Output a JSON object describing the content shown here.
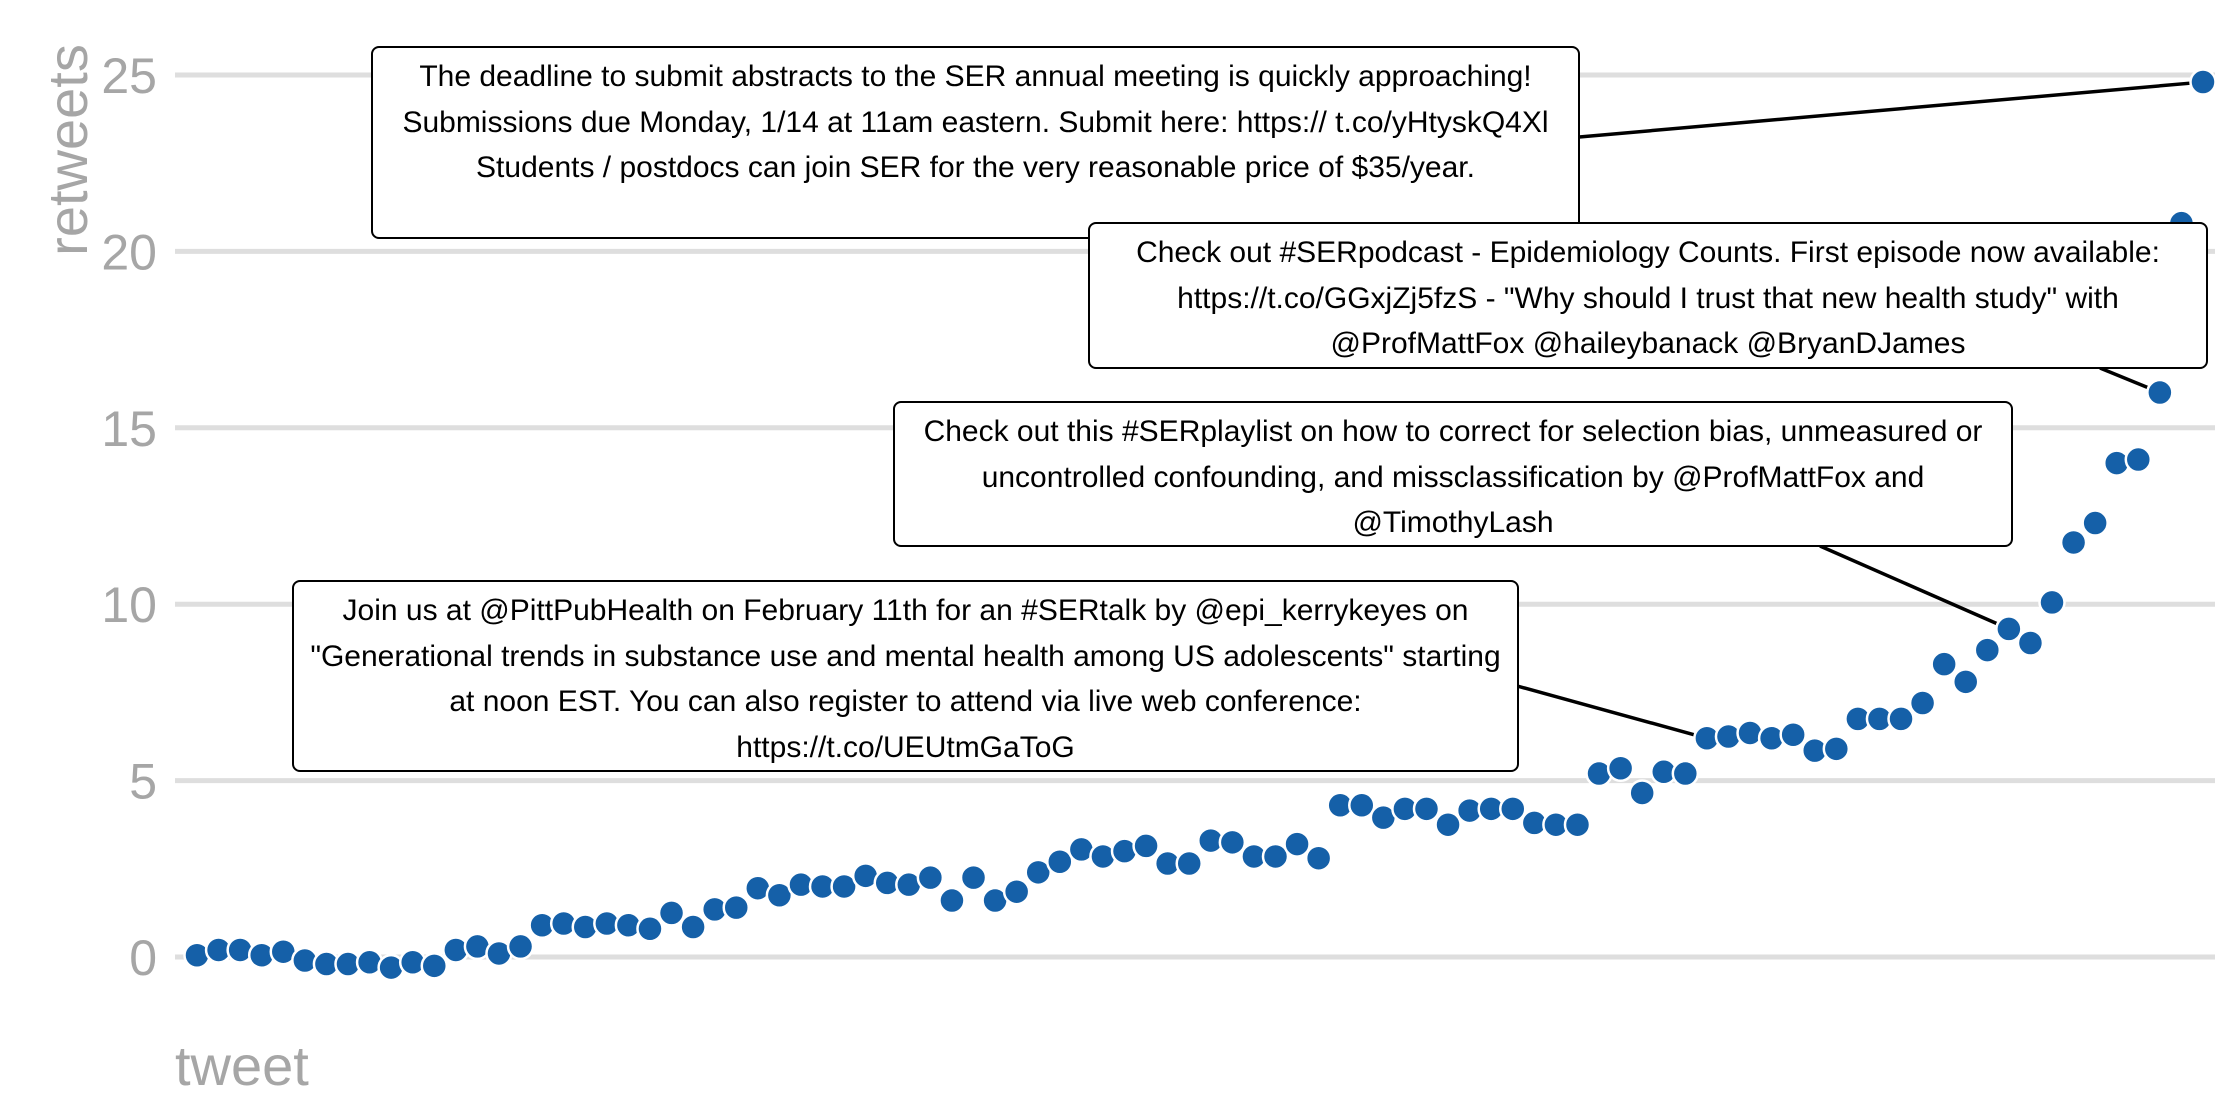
{
  "chart_data": {
    "type": "scatter",
    "xlabel": "tweet",
    "ylabel": "retweets",
    "ylim": [
      -1.5,
      26
    ],
    "yticks": [
      0,
      5,
      10,
      15,
      20,
      25
    ],
    "grid": "horizontal",
    "point_color": "#1560a8",
    "series": [
      {
        "values": [
          0.05,
          0.2,
          0.2,
          0.05,
          0.15,
          -0.1,
          -0.2,
          -0.2,
          -0.15,
          -0.3,
          -0.15,
          -0.25,
          0.2,
          0.3,
          0.1,
          0.3,
          0.9,
          0.95,
          0.85,
          0.95,
          0.9,
          0.8,
          1.25,
          0.85,
          1.35,
          1.4,
          1.95,
          1.75,
          2.05,
          2.0,
          2.0,
          2.3,
          2.1,
          2.05,
          2.25,
          1.6,
          2.25,
          1.6,
          1.85,
          2.4,
          2.7,
          3.05,
          2.85,
          3.0,
          3.15,
          2.65,
          2.65,
          3.3,
          3.25,
          2.85,
          2.85,
          3.2,
          2.8,
          4.3,
          4.3,
          3.95,
          4.2,
          4.2,
          3.75,
          4.15,
          4.2,
          4.2,
          3.8,
          3.75,
          3.75,
          5.2,
          5.35,
          4.65,
          5.25,
          5.2,
          6.2,
          6.25,
          6.35,
          6.2,
          6.3,
          5.85,
          5.9,
          6.75,
          6.75,
          6.75,
          7.2,
          8.3,
          7.8,
          8.7,
          9.3,
          8.9,
          10.05,
          11.75,
          12.3,
          14.0,
          14.1,
          16.0,
          20.8,
          24.8
        ]
      }
    ],
    "annotations": [
      {
        "text": "The deadline to submit abstracts to the SER annual meeting is quickly approaching! Submissions due Monday, 1/14 at 11am eastern. Submit here: https:// t.co/yHtyskQ4Xl Students / postdocs can join SER for the very reasonable price of $35/year.",
        "point_index": 93
      },
      {
        "text": "Check out #SERpodcast - Epidemiology Counts. First episode now available: https://t.co/GGxjZj5fzS - \"Why should I trust that new health study\" with @ProfMattFox @haileybanack @BryanDJames",
        "point_index": 91
      },
      {
        "text": "Check out this #SERplaylist on how to correct for selection bias, unmeasured or uncontrolled confounding, and missclassification by @ProfMattFox and @TimothyLash",
        "point_index": 84
      },
      {
        "text": "Join us at @PittPubHealth on February 11th for an #SERtalk by @epi_kerrykeyes on \"Generational trends in substance use and mental health among US adolescents\" starting at noon EST. You can also register to attend via live web conference: https://t.co/UEUtmGaToG",
        "point_index": 70
      }
    ]
  }
}
